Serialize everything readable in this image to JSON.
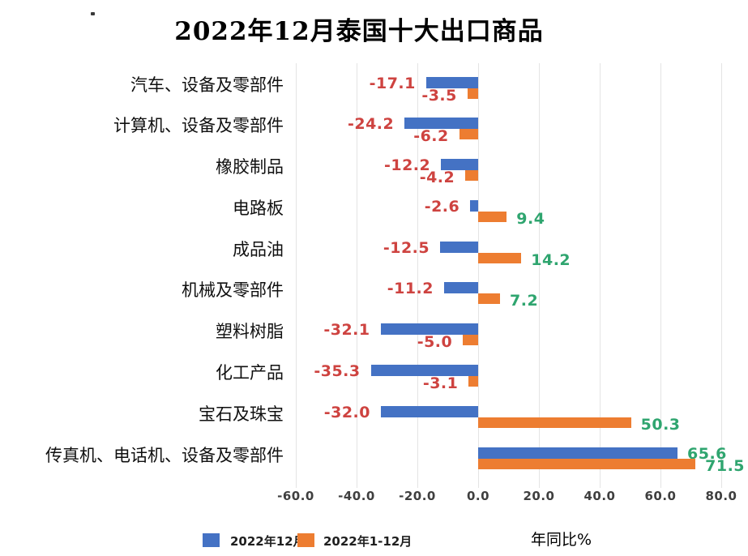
{
  "chart_data": {
    "type": "bar",
    "orientation": "horizontal",
    "title": "2022年12月泰国十大出口商品",
    "xlabel": "年同比%",
    "categories": [
      "汽车、设备及零部件",
      "计算机、设备及零部件",
      "橡胶制品",
      "电路板",
      "成品油",
      "机械及零部件",
      "塑料树脂",
      "化工产品",
      "宝石及珠宝",
      "传真机、电话机、设备及零部件"
    ],
    "series": [
      {
        "name": "2022年12月",
        "color": "#4472C4",
        "values": [
          -17.1,
          -24.2,
          -12.2,
          -2.6,
          -12.5,
          -11.2,
          -32.1,
          -35.3,
          -32.0,
          65.6
        ]
      },
      {
        "name": "2022年1-12月",
        "color": "#ED7D31",
        "values": [
          -3.5,
          -6.2,
          -4.2,
          9.4,
          14.2,
          7.2,
          -5.0,
          -3.1,
          50.3,
          71.5
        ]
      }
    ],
    "x_ticks": [
      -60,
      -40,
      -20,
      0,
      20,
      40,
      60,
      80
    ],
    "xlim": [
      -60,
      80
    ],
    "tick_format": "one-decimal",
    "grid": true,
    "legend_position": "bottom",
    "value_label_colors": {
      "negative": "#CE4340",
      "positive": "#2FA56F"
    },
    "tick_label_color": "#3F3F3F",
    "gridline_color": "#E4E4E4"
  }
}
